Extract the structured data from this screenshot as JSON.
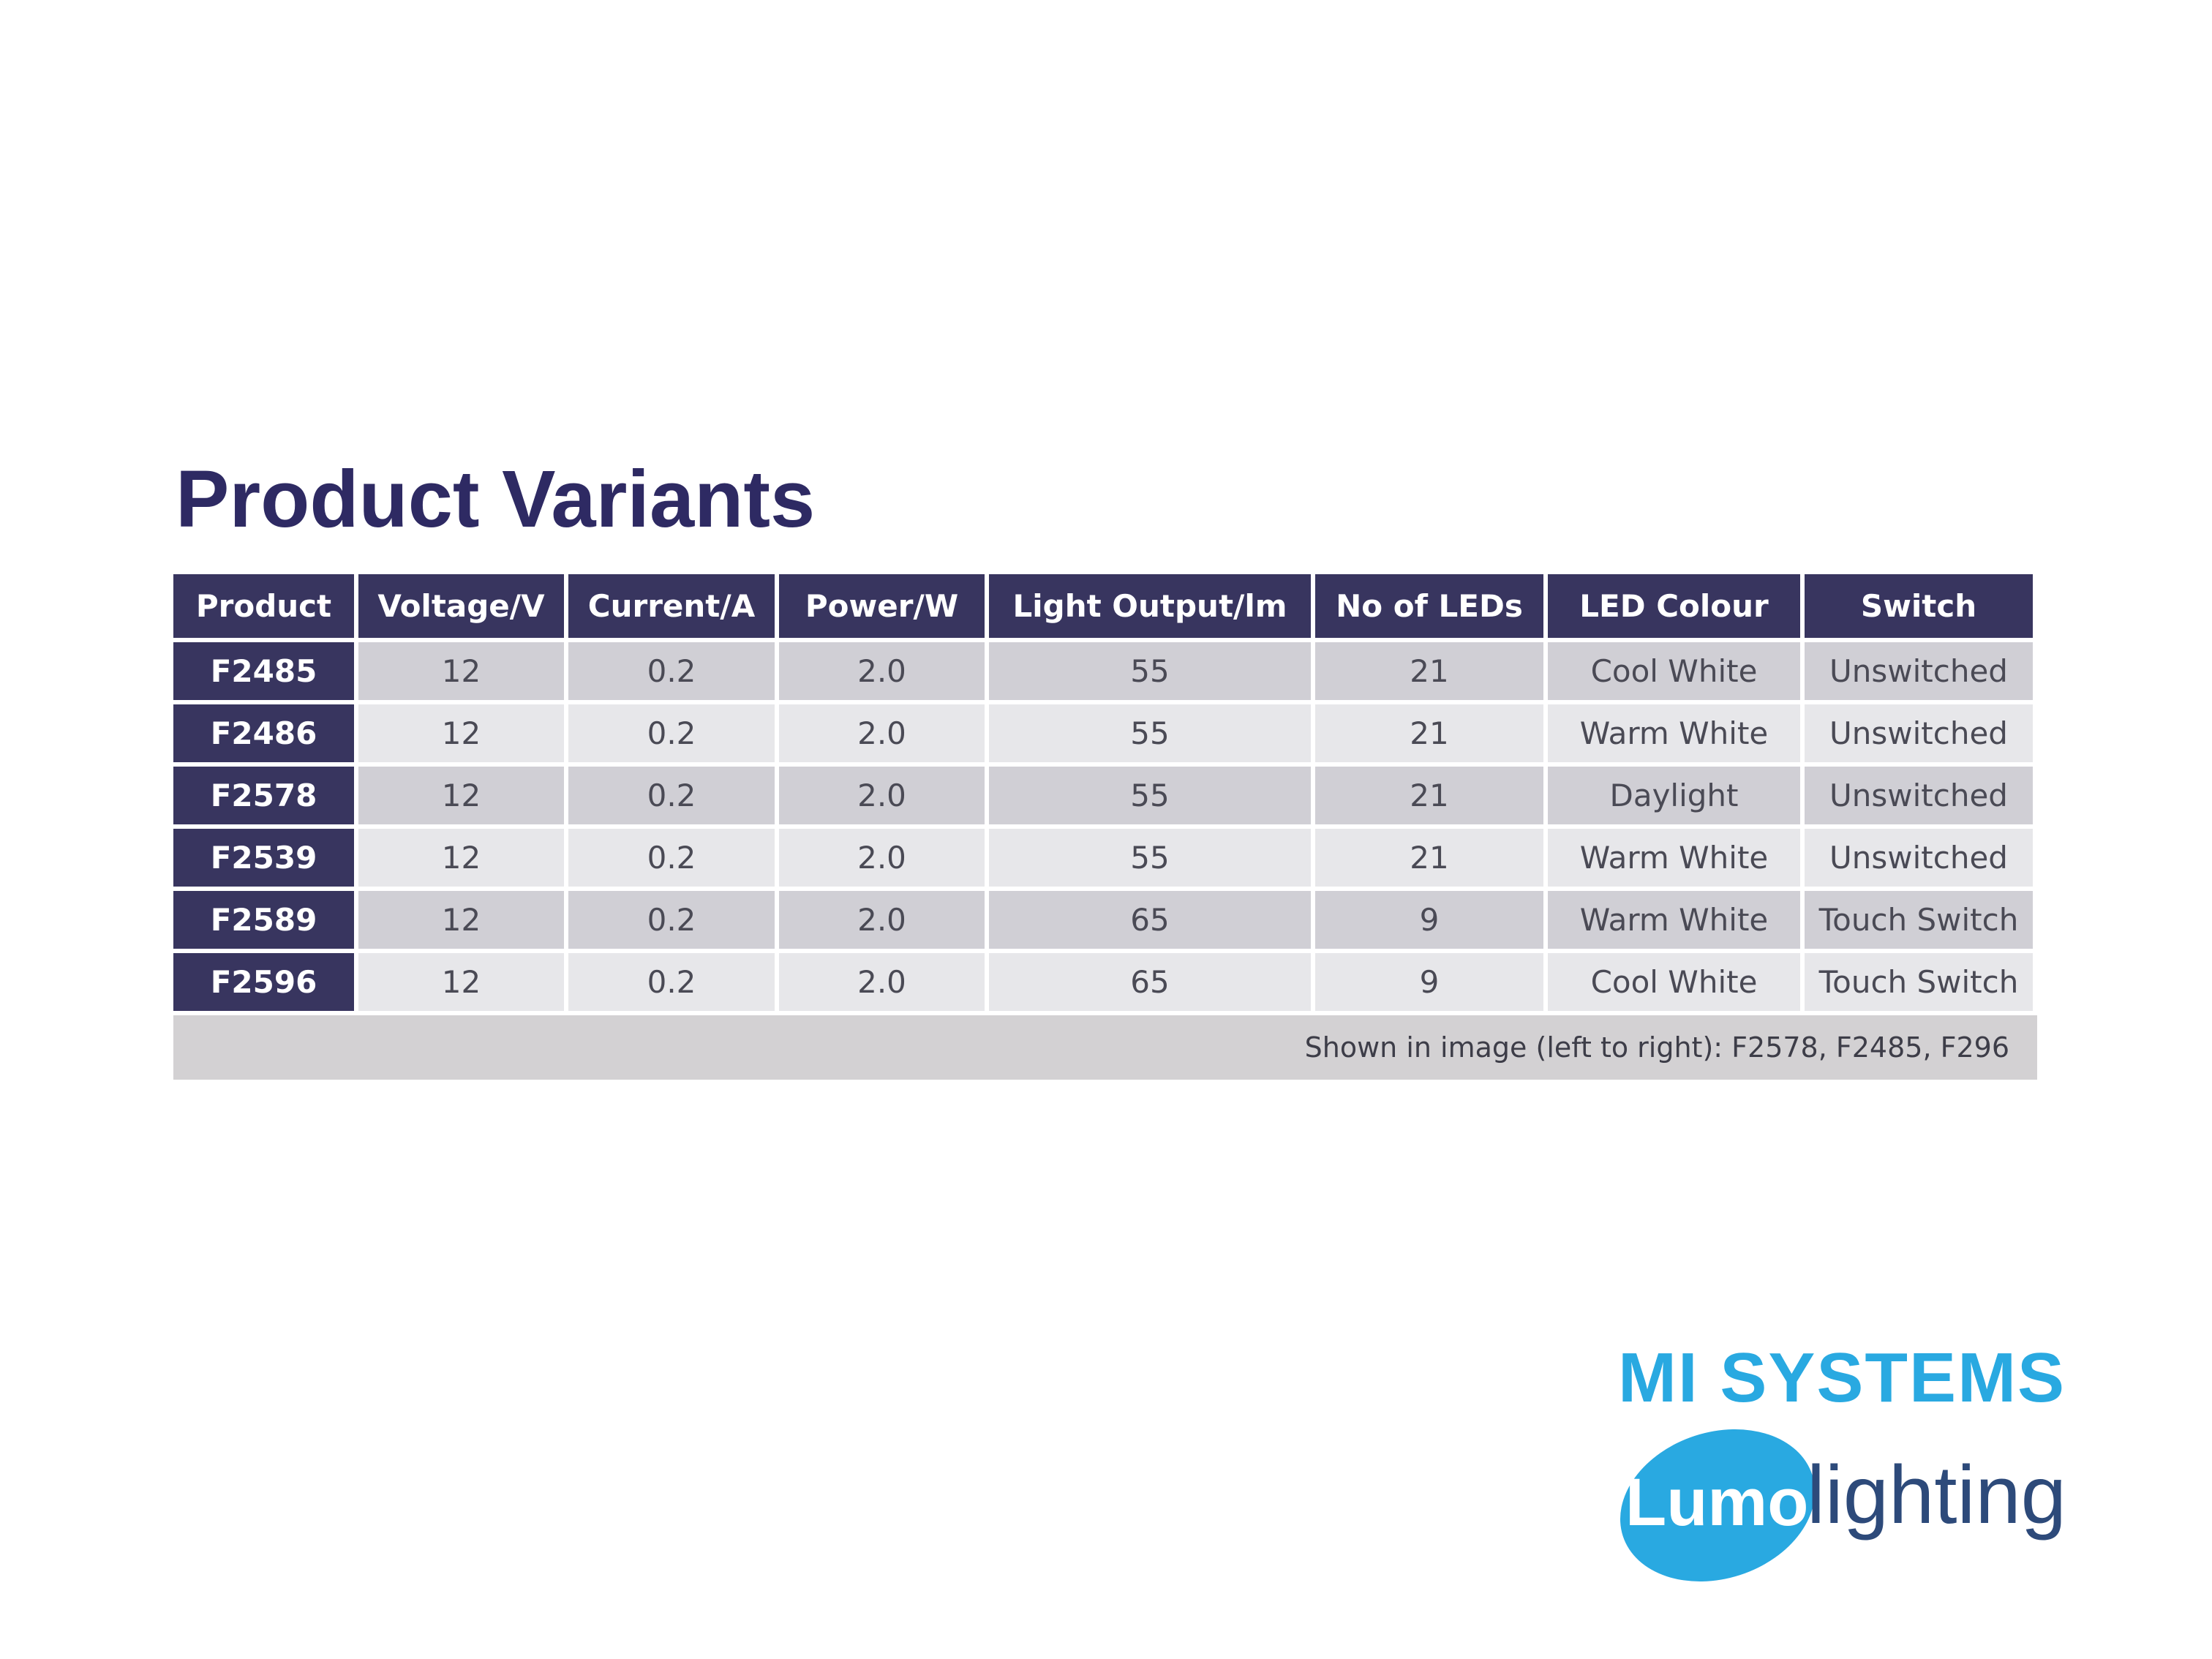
{
  "header": {
    "title": "Product Variants"
  },
  "table": {
    "columns": [
      "Product",
      "Voltage/V",
      "Current/A",
      "Power/W",
      "Light Output/lm",
      "No of LEDs",
      "LED Colour",
      "Switch"
    ],
    "rows": [
      [
        "F2485",
        "12",
        "0.2",
        "2.0",
        "55",
        "21",
        "Cool White",
        "Unswitched"
      ],
      [
        "F2486",
        "12",
        "0.2",
        "2.0",
        "55",
        "21",
        "Warm White",
        "Unswitched"
      ],
      [
        "F2578",
        "12",
        "0.2",
        "2.0",
        "55",
        "21",
        "Daylight",
        "Unswitched"
      ],
      [
        "F2539",
        "12",
        "0.2",
        "2.0",
        "55",
        "21",
        "Warm White",
        "Unswitched"
      ],
      [
        "F2589",
        "12",
        "0.2",
        "2.0",
        "65",
        "9",
        "Warm White",
        "Touch Switch"
      ],
      [
        "F2596",
        "12",
        "0.2",
        "2.0",
        "65",
        "9",
        "Cool White",
        "Touch Switch"
      ]
    ],
    "footnote": "Shown in image (left to right): F2578, F2485, F296"
  },
  "logo": {
    "brand": "MI SYSTEMS",
    "lumo": "Lumo",
    "lighting": "lighting"
  }
}
